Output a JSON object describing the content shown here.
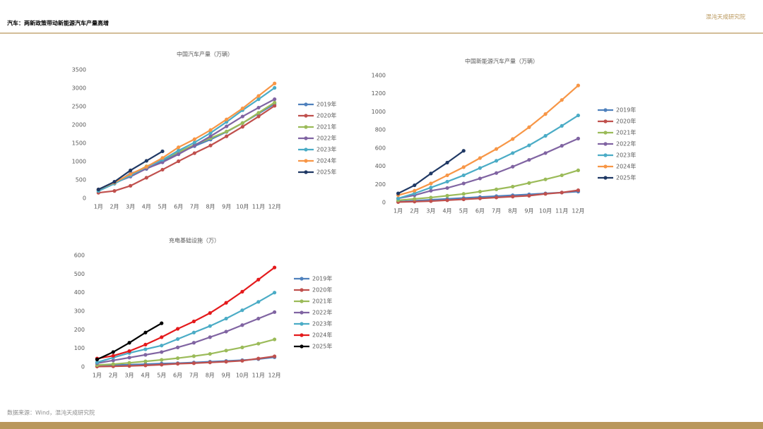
{
  "header": {
    "title": "汽车：两新政策带动新能源汽车产量高增",
    "logo": "混沌天成研究院"
  },
  "footer": {
    "source": "数据来源：Wind，混沌天成研究院"
  },
  "chart_data": [
    {
      "type": "line",
      "title": "中国汽车产量（万辆）",
      "legend": "right",
      "grid": false,
      "categories": [
        "1月",
        "2月",
        "3月",
        "4月",
        "5月",
        "6月",
        "7月",
        "8月",
        "9月",
        "10月",
        "11月",
        "12月"
      ],
      "ylim": [
        0,
        3500
      ],
      "yticks": [
        0,
        500,
        1000,
        1500,
        2000,
        2500,
        3000,
        3500
      ],
      "series": [
        {
          "name": "2019年",
          "color": "#4f81bd",
          "values": [
            200,
            400,
            680,
            800,
            1010,
            1230,
            1420,
            1600,
            1810,
            2050,
            2310,
            2570
          ]
        },
        {
          "name": "2020年",
          "color": "#c0504d",
          "values": [
            150,
            200,
            340,
            560,
            780,
            1010,
            1230,
            1440,
            1690,
            1950,
            2230,
            2520
          ]
        },
        {
          "name": "2021年",
          "color": "#9bbb59",
          "values": [
            230,
            400,
            640,
            870,
            1050,
            1260,
            1460,
            1640,
            1820,
            2050,
            2330,
            2610
          ]
        },
        {
          "name": "2022年",
          "color": "#8064a2",
          "values": [
            240,
            420,
            590,
            810,
            980,
            1200,
            1440,
            1690,
            1960,
            2230,
            2470,
            2700
          ]
        },
        {
          "name": "2023年",
          "color": "#4bacc6",
          "values": [
            200,
            400,
            620,
            850,
            1050,
            1300,
            1520,
            1780,
            2080,
            2400,
            2700,
            3010
          ]
        },
        {
          "name": "2024年",
          "color": "#f79646",
          "values": [
            240,
            430,
            660,
            860,
            1100,
            1390,
            1610,
            1860,
            2150,
            2450,
            2790,
            3130
          ]
        },
        {
          "name": "2025年",
          "color": "#1f3864",
          "values": [
            240,
            450,
            760,
            1020,
            1280,
            null,
            null,
            null,
            null,
            null,
            null,
            null
          ]
        }
      ]
    },
    {
      "type": "line",
      "title": "中国新能源汽车产量（万辆）",
      "legend": "right",
      "grid": false,
      "categories": [
        "1月",
        "2月",
        "3月",
        "4月",
        "5月",
        "6月",
        "7月",
        "8月",
        "9月",
        "10月",
        "11月",
        "12月"
      ],
      "ylim": [
        0,
        1400
      ],
      "yticks": [
        0,
        200,
        400,
        600,
        800,
        1000,
        1200,
        1400
      ],
      "series": [
        {
          "name": "2019年",
          "color": "#4f81bd",
          "values": [
            10,
            20,
            30,
            40,
            50,
            60,
            70,
            80,
            90,
            100,
            110,
            120
          ]
        },
        {
          "name": "2020年",
          "color": "#c0504d",
          "values": [
            5,
            10,
            15,
            25,
            35,
            45,
            55,
            65,
            75,
            95,
            110,
            135
          ]
        },
        {
          "name": "2021年",
          "color": "#9bbb59",
          "values": [
            25,
            40,
            55,
            75,
            95,
            120,
            145,
            175,
            215,
            255,
            300,
            355
          ]
        },
        {
          "name": "2022年",
          "color": "#8064a2",
          "values": [
            45,
            80,
            130,
            160,
            210,
            265,
            325,
            395,
            470,
            545,
            625,
            705
          ]
        },
        {
          "name": "2023年",
          "color": "#4bacc6",
          "values": [
            45,
            100,
            165,
            230,
            300,
            380,
            460,
            545,
            630,
            735,
            845,
            960
          ]
        },
        {
          "name": "2024年",
          "color": "#f79646",
          "values": [
            80,
            130,
            210,
            300,
            390,
            490,
            590,
            700,
            830,
            975,
            1130,
            1290
          ]
        },
        {
          "name": "2025年",
          "color": "#1f3864",
          "values": [
            100,
            190,
            320,
            440,
            570,
            null,
            null,
            null,
            null,
            null,
            null,
            null
          ]
        }
      ]
    },
    {
      "type": "line",
      "title": "充电基础设施（万）",
      "legend": "right",
      "grid": false,
      "categories": [
        "1月",
        "2月",
        "3月",
        "4月",
        "5月",
        "6月",
        "7月",
        "8月",
        "9月",
        "10月",
        "11月",
        "12月"
      ],
      "ylim": [
        0,
        600
      ],
      "yticks": [
        0,
        100,
        200,
        300,
        400,
        500,
        600
      ],
      "series": [
        {
          "name": "2019年",
          "color": "#4f81bd",
          "values": [
            5,
            10,
            12,
            15,
            18,
            20,
            24,
            28,
            32,
            36,
            42,
            52
          ]
        },
        {
          "name": "2020年",
          "color": "#c0504d",
          "values": [
            2,
            3,
            5,
            8,
            12,
            17,
            20,
            24,
            28,
            33,
            45,
            57
          ]
        },
        {
          "name": "2021年",
          "color": "#9bbb59",
          "values": [
            10,
            15,
            22,
            30,
            38,
            47,
            58,
            70,
            88,
            105,
            125,
            148
          ]
        },
        {
          "name": "2022年",
          "color": "#8064a2",
          "values": [
            20,
            35,
            50,
            65,
            80,
            105,
            130,
            160,
            190,
            225,
            260,
            295
          ]
        },
        {
          "name": "2023年",
          "color": "#4bacc6",
          "values": [
            25,
            50,
            75,
            95,
            115,
            150,
            185,
            220,
            260,
            305,
            350,
            400
          ]
        },
        {
          "name": "2024年",
          "color": "#e41a1c",
          "values": [
            45,
            60,
            85,
            120,
            160,
            205,
            245,
            290,
            345,
            405,
            470,
            535
          ]
        },
        {
          "name": "2025年",
          "color": "#000000",
          "values": [
            40,
            80,
            130,
            185,
            235,
            null,
            null,
            null,
            null,
            null,
            null,
            null
          ]
        }
      ]
    }
  ]
}
